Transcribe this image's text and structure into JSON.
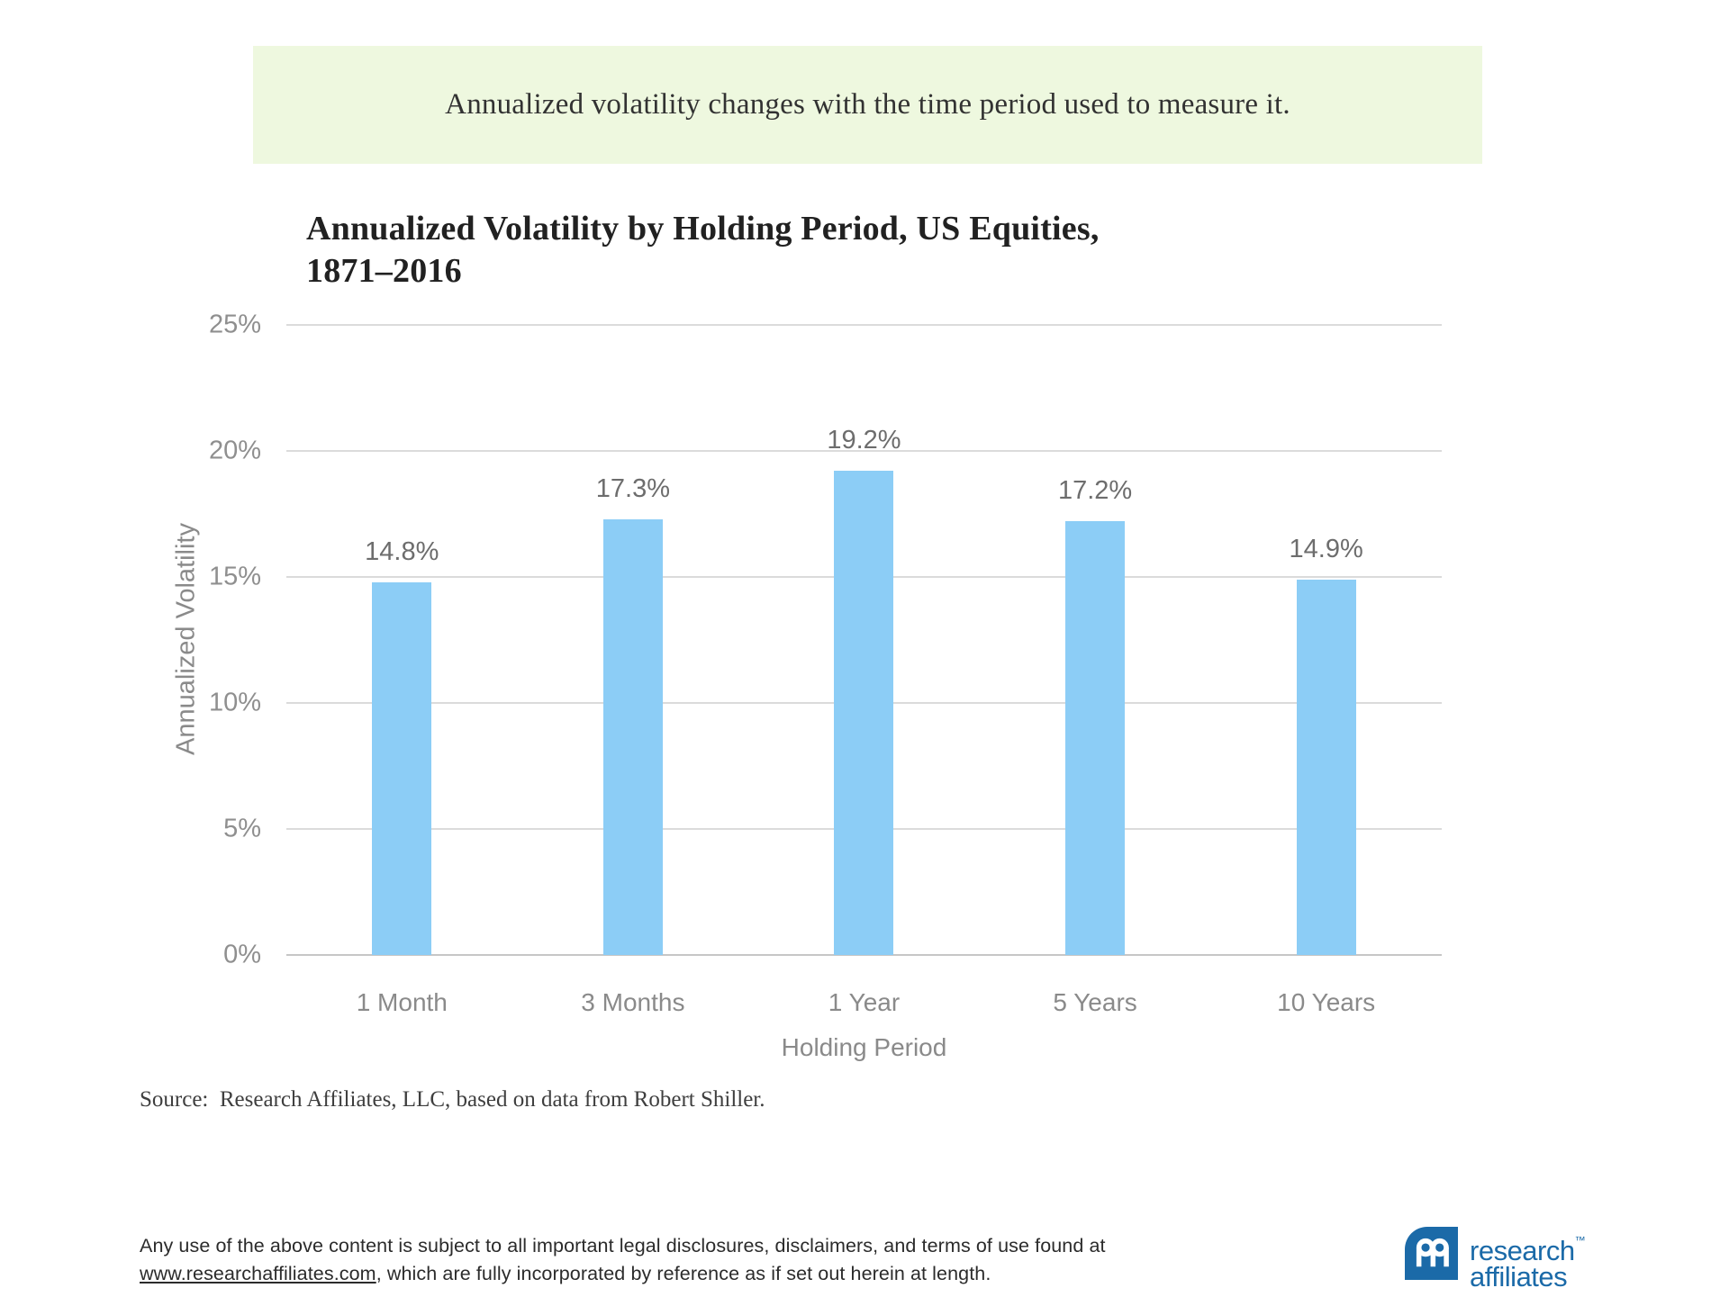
{
  "banner": {
    "text": "Annualized volatility changes with the time period used to measure it."
  },
  "chart_data": {
    "type": "bar",
    "title_line1": "Annualized Volatility by Holding Period, US Equities,",
    "title_line2": "1871–2016",
    "categories": [
      "1 Month",
      "3 Months",
      "1 Year",
      "5 Years",
      "10 Years"
    ],
    "values": [
      14.8,
      17.3,
      19.2,
      17.2,
      14.9
    ],
    "value_labels": [
      "14.8%",
      "17.3%",
      "19.2%",
      "17.2%",
      "14.9%"
    ],
    "xlabel": "Holding Period",
    "ylabel": "Annualized Volatility",
    "ylim": [
      0,
      25
    ],
    "yticks": [
      0,
      5,
      10,
      15,
      20,
      25
    ],
    "ytick_labels": [
      "0%",
      "5%",
      "10%",
      "15%",
      "20%",
      "25%"
    ],
    "grid": "horizontal-only",
    "legend": "none"
  },
  "source": {
    "text": "Source:  Research Affiliates, LLC, based on data from Robert Shiller."
  },
  "footer": {
    "line1": "Any use of the above content is subject to all important legal disclosures, disclaimers, and terms of use found at",
    "link": "www.researchaffiliates.com",
    "line2_rest": ", which are fully incorporated by reference as if set out herein at length."
  },
  "logo": {
    "line1": "research",
    "tm": "™",
    "line2": "affiliates"
  },
  "colors": {
    "banner_bg": "#EEF8DF",
    "bar_fill": "#8CCDF6",
    "gridline": "#DBDBDB",
    "axis_line": "#C6C6C6",
    "brand_blue": "#1B6AA8"
  }
}
